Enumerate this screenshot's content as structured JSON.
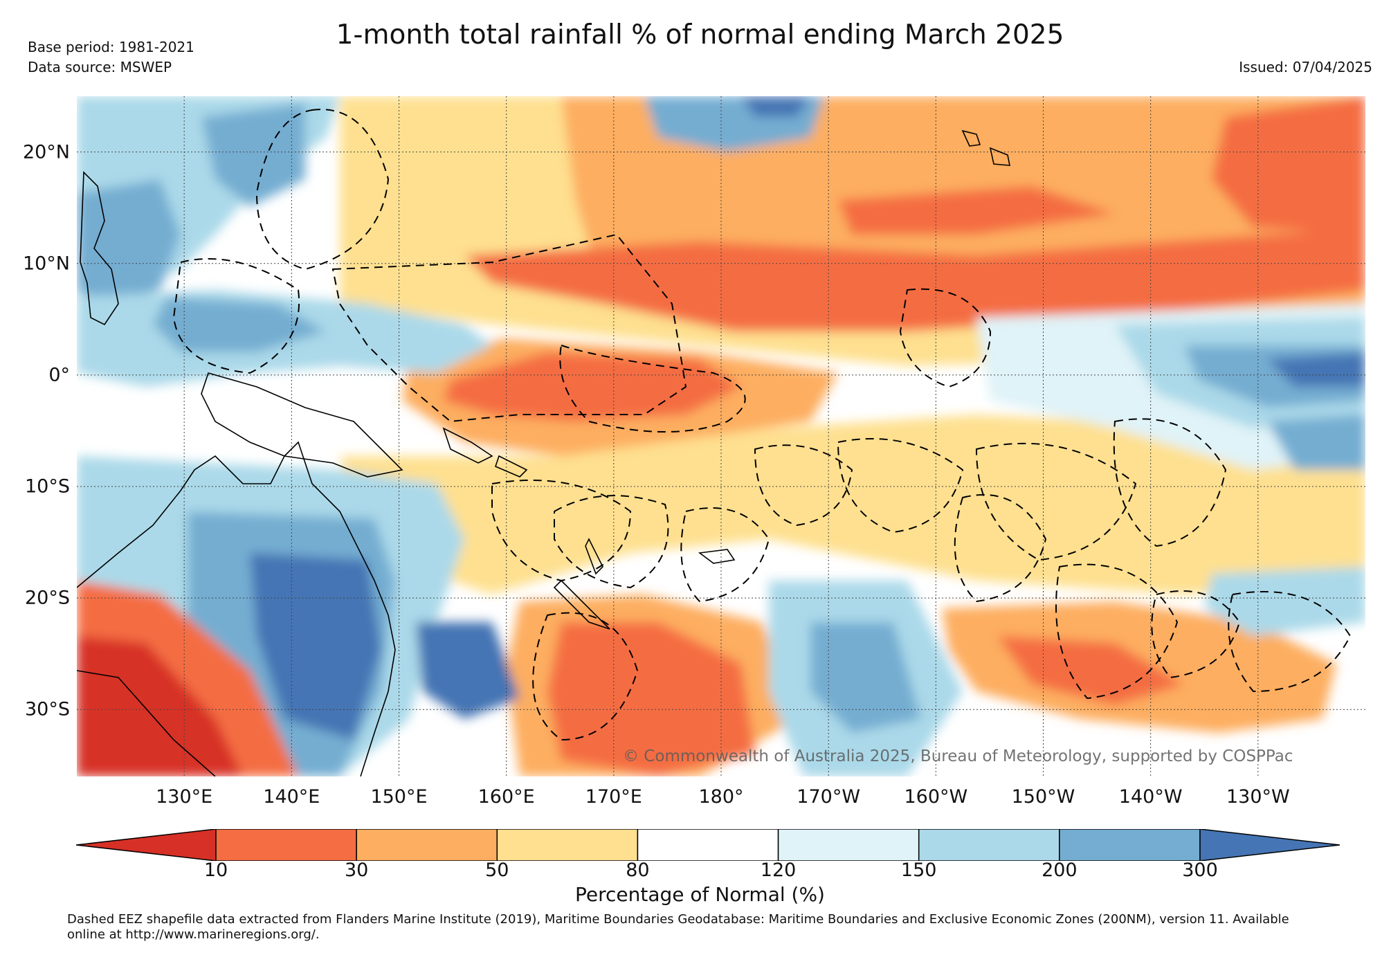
{
  "title": "1-month total rainfall % of normal ending March 2025",
  "base_period": "Base period: 1981-2021",
  "data_source": "Data source: MSWEP",
  "issued": "Issued: 07/04/2025",
  "copyright": "© Commonwealth of Australia 2025, Bureau of Meteorology, supported by COSPPac",
  "footer_line1": "Dashed EEZ shapefile data extracted from Flanders Marine Institute (2019), Maritime Boundaries Geodatabase: Maritime Boundaries and Exclusive Economic Zones (200NM), version 11. Available",
  "footer_line2": "online at http://www.marineregions.org/.",
  "map": {
    "lon_range": [
      120,
      240
    ],
    "lat_range": [
      -36,
      25
    ],
    "lon_ticks": [
      {
        "value": 130,
        "label": "130°E"
      },
      {
        "value": 140,
        "label": "140°E"
      },
      {
        "value": 150,
        "label": "150°E"
      },
      {
        "value": 160,
        "label": "160°E"
      },
      {
        "value": 170,
        "label": "170°E"
      },
      {
        "value": 180,
        "label": "180°"
      },
      {
        "value": 190,
        "label": "170°W"
      },
      {
        "value": 200,
        "label": "160°W"
      },
      {
        "value": 210,
        "label": "150°W"
      },
      {
        "value": 220,
        "label": "140°W"
      },
      {
        "value": 230,
        "label": "130°W"
      }
    ],
    "lat_ticks": [
      {
        "value": 20,
        "label": "20°N"
      },
      {
        "value": 10,
        "label": "10°N"
      },
      {
        "value": 0,
        "label": "0°"
      },
      {
        "value": -10,
        "label": "10°S"
      },
      {
        "value": -20,
        "label": "20°S"
      },
      {
        "value": -30,
        "label": "30°S"
      }
    ],
    "gridlines": "dotted"
  },
  "colorbar": {
    "title": "Percentage of Normal (%)",
    "ticks": [
      "10",
      "30",
      "50",
      "80",
      "120",
      "150",
      "200",
      "300"
    ],
    "colors": [
      "#d73027",
      "#f46d43",
      "#fdae61",
      "#fee090",
      "#ffffff",
      "#e0f3f8",
      "#abd9e9",
      "#74add1",
      "#4575b4"
    ]
  }
}
